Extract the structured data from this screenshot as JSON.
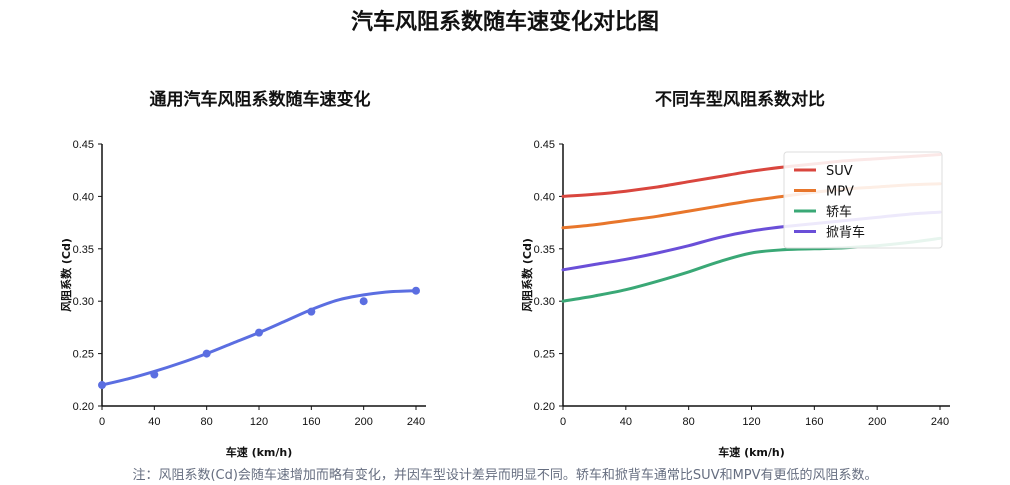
{
  "figure_title": "汽车风阻系数随车速变化对比图",
  "note": "注：风阻系数(Cd)会随车速增加而略有变化，并因车型设计差异而明显不同。轿车和掀背车通常比SUV和MPV有更低的风阻系数。",
  "chart_data": [
    {
      "type": "line",
      "title": "通用汽车风阻系数随车速变化",
      "xlabel": "车速 (km/h)",
      "ylabel": "风阻系数 (Cd)",
      "xlim": [
        0,
        240
      ],
      "ylim": [
        0.2,
        0.45
      ],
      "xticks": [
        "0",
        "40",
        "80",
        "120",
        "160",
        "200",
        "240"
      ],
      "yticks": [
        "0.20",
        "0.25",
        "0.30",
        "0.35",
        "0.40",
        "0.45"
      ],
      "points": {
        "x": [
          0,
          40,
          80,
          120,
          160,
          200,
          240
        ],
        "y": [
          0.22,
          0.23,
          0.25,
          0.27,
          0.29,
          0.3,
          0.31
        ]
      },
      "fit_curve": {
        "x": [
          0,
          20,
          40,
          60,
          80,
          100,
          120,
          140,
          160,
          180,
          200,
          220,
          240
        ],
        "y": [
          0.22,
          0.226,
          0.233,
          0.241,
          0.25,
          0.26,
          0.27,
          0.281,
          0.292,
          0.301,
          0.306,
          0.309,
          0.31
        ]
      },
      "color": "#5b6ee1"
    },
    {
      "type": "line",
      "title": "不同车型风阻系数对比",
      "xlabel": "车速 (km/h)",
      "ylabel": "风阻系数 (Cd)",
      "xlim": [
        0,
        240
      ],
      "ylim": [
        0.2,
        0.45
      ],
      "xticks": [
        "0",
        "40",
        "80",
        "120",
        "160",
        "200",
        "240"
      ],
      "yticks": [
        "0.20",
        "0.25",
        "0.30",
        "0.35",
        "0.40",
        "0.45"
      ],
      "legend_position": "top-right",
      "x": [
        0,
        20,
        40,
        60,
        80,
        100,
        120,
        140,
        160,
        180,
        200,
        220,
        240
      ],
      "series": [
        {
          "name": "SUV",
          "color": "#d9463e",
          "values": [
            0.4,
            0.402,
            0.405,
            0.409,
            0.414,
            0.419,
            0.424,
            0.428,
            0.431,
            0.434,
            0.436,
            0.438,
            0.44
          ]
        },
        {
          "name": "MPV",
          "color": "#e8762b",
          "values": [
            0.37,
            0.373,
            0.377,
            0.381,
            0.386,
            0.391,
            0.396,
            0.4,
            0.404,
            0.407,
            0.409,
            0.411,
            0.412
          ]
        },
        {
          "name": "轿车",
          "color": "#3aa876",
          "values": [
            0.3,
            0.305,
            0.311,
            0.319,
            0.328,
            0.338,
            0.346,
            0.349,
            0.35,
            0.351,
            0.353,
            0.356,
            0.36
          ]
        },
        {
          "name": "掀背车",
          "color": "#6a4fd8",
          "values": [
            0.33,
            0.335,
            0.34,
            0.346,
            0.353,
            0.361,
            0.367,
            0.371,
            0.374,
            0.377,
            0.38,
            0.383,
            0.385
          ]
        }
      ]
    }
  ]
}
